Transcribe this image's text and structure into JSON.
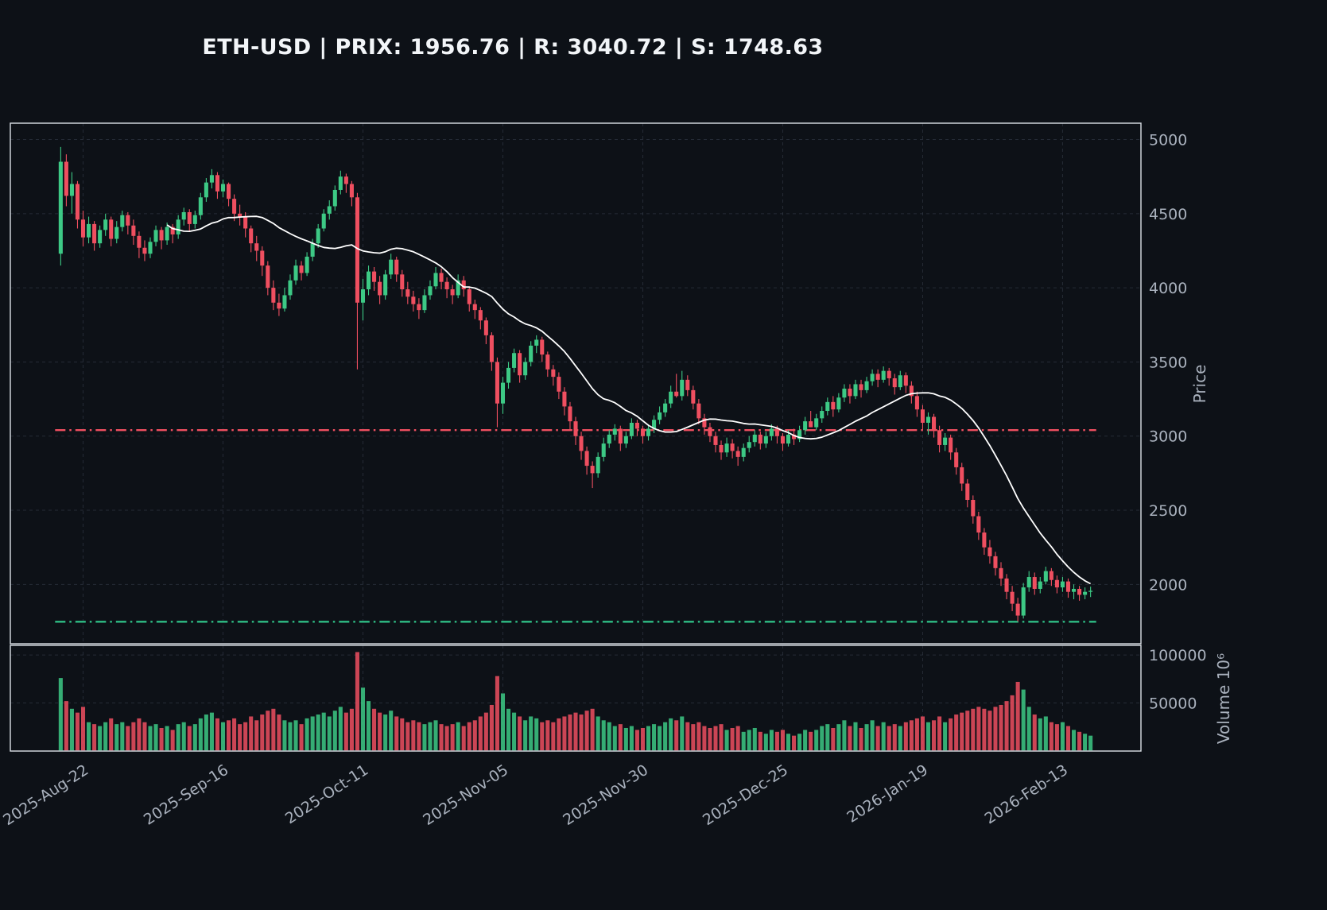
{
  "title": "ETH-USD | PRIX: 1956.76 | R: 3040.72 | S: 1748.63",
  "header": {
    "symbol": "ETH-USD",
    "price": 1956.76,
    "resistance": 3040.72,
    "support": 1748.63
  },
  "chart_data": {
    "type": "candlestick",
    "panels": [
      "price",
      "volume"
    ],
    "ohlcv_format": [
      "open",
      "high",
      "low",
      "close",
      "volume_x1e6"
    ],
    "ma": {
      "period": 20,
      "color": "#ffffff",
      "name": "moving-average"
    },
    "hlines": [
      {
        "name": "resistance-line",
        "value": 3040.72,
        "color": "#ef4f60",
        "style": "dashdot"
      },
      {
        "name": "support-line",
        "value": 1748.63,
        "color": "#2ebd85",
        "style": "dashdot"
      }
    ],
    "y_axis": {
      "label": "Price",
      "ticks": [
        2000,
        2500,
        3000,
        3500,
        4000,
        4500,
        5000
      ],
      "range": [
        1600,
        5110
      ]
    },
    "volume_axis": {
      "label": "Volume  10⁶",
      "ticks": [
        50000,
        100000
      ],
      "range": [
        0,
        110000
      ]
    },
    "x_ticks": [
      {
        "index": 4,
        "label": "2025-Aug-22"
      },
      {
        "index": 29,
        "label": "2025-Sep-16"
      },
      {
        "index": 54,
        "label": "2025-Oct-11"
      },
      {
        "index": 79,
        "label": "2025-Nov-05"
      },
      {
        "index": 104,
        "label": "2025-Nov-30"
      },
      {
        "index": 129,
        "label": "2025-Dec-25"
      },
      {
        "index": 154,
        "label": "2026-Jan-19"
      },
      {
        "index": 179,
        "label": "2026-Feb-13"
      }
    ],
    "colors": {
      "up": "#3dc985",
      "down": "#ef4f60",
      "ma": "#ffffff",
      "background": "#0d1117",
      "grid": "#3a4150",
      "axis_text": "#a9b1bd",
      "border": "#dde2e8",
      "title": "#f2f5f8"
    },
    "candles": [
      [
        4230,
        4950,
        4150,
        4850,
        76000
      ],
      [
        4850,
        4900,
        4550,
        4620,
        52000
      ],
      [
        4620,
        4780,
        4500,
        4700,
        44000
      ],
      [
        4700,
        4720,
        4400,
        4460,
        40000
      ],
      [
        4460,
        4520,
        4280,
        4340,
        46000
      ],
      [
        4340,
        4480,
        4300,
        4430,
        30000
      ],
      [
        4430,
        4450,
        4250,
        4300,
        28000
      ],
      [
        4300,
        4420,
        4270,
        4390,
        26000
      ],
      [
        4390,
        4500,
        4350,
        4460,
        30000
      ],
      [
        4460,
        4480,
        4280,
        4330,
        34000
      ],
      [
        4330,
        4450,
        4300,
        4410,
        28000
      ],
      [
        4410,
        4520,
        4380,
        4490,
        30000
      ],
      [
        4490,
        4510,
        4360,
        4420,
        26000
      ],
      [
        4420,
        4460,
        4290,
        4350,
        30000
      ],
      [
        4350,
        4380,
        4200,
        4270,
        34000
      ],
      [
        4270,
        4320,
        4180,
        4230,
        30000
      ],
      [
        4230,
        4340,
        4200,
        4310,
        26000
      ],
      [
        4310,
        4420,
        4280,
        4390,
        28000
      ],
      [
        4390,
        4410,
        4260,
        4320,
        24000
      ],
      [
        4320,
        4440,
        4290,
        4410,
        26000
      ],
      [
        4410,
        4430,
        4300,
        4360,
        22000
      ],
      [
        4360,
        4490,
        4330,
        4460,
        28000
      ],
      [
        4460,
        4540,
        4420,
        4510,
        30000
      ],
      [
        4510,
        4530,
        4380,
        4430,
        26000
      ],
      [
        4430,
        4520,
        4400,
        4490,
        28000
      ],
      [
        4490,
        4640,
        4460,
        4610,
        34000
      ],
      [
        4610,
        4740,
        4580,
        4710,
        38000
      ],
      [
        4710,
        4800,
        4670,
        4760,
        40000
      ],
      [
        4760,
        4780,
        4600,
        4650,
        34000
      ],
      [
        4650,
        4730,
        4610,
        4700,
        30000
      ],
      [
        4700,
        4710,
        4550,
        4600,
        32000
      ],
      [
        4600,
        4630,
        4450,
        4500,
        34000
      ],
      [
        4500,
        4560,
        4420,
        4480,
        28000
      ],
      [
        4480,
        4510,
        4340,
        4400,
        30000
      ],
      [
        4400,
        4420,
        4240,
        4300,
        36000
      ],
      [
        4300,
        4350,
        4180,
        4250,
        32000
      ],
      [
        4250,
        4280,
        4080,
        4150,
        38000
      ],
      [
        4150,
        4180,
        3950,
        4000,
        42000
      ],
      [
        4000,
        4050,
        3850,
        3900,
        44000
      ],
      [
        3900,
        3960,
        3810,
        3860,
        38000
      ],
      [
        3860,
        4000,
        3840,
        3950,
        32000
      ],
      [
        3950,
        4090,
        3920,
        4050,
        30000
      ],
      [
        4050,
        4190,
        4020,
        4150,
        32000
      ],
      [
        4150,
        4180,
        4050,
        4100,
        28000
      ],
      [
        4100,
        4240,
        4080,
        4210,
        34000
      ],
      [
        4210,
        4330,
        4180,
        4300,
        36000
      ],
      [
        4300,
        4430,
        4270,
        4400,
        38000
      ],
      [
        4400,
        4530,
        4380,
        4500,
        40000
      ],
      [
        4500,
        4590,
        4460,
        4550,
        36000
      ],
      [
        4550,
        4690,
        4520,
        4660,
        42000
      ],
      [
        4660,
        4790,
        4630,
        4750,
        46000
      ],
      [
        4750,
        4770,
        4640,
        4700,
        40000
      ],
      [
        4700,
        4720,
        4550,
        4610,
        44000
      ],
      [
        4610,
        4640,
        3450,
        3900,
        103000
      ],
      [
        3900,
        4060,
        3780,
        3990,
        66000
      ],
      [
        3990,
        4150,
        3950,
        4110,
        52000
      ],
      [
        4110,
        4140,
        3980,
        4040,
        44000
      ],
      [
        4040,
        4080,
        3890,
        3950,
        40000
      ],
      [
        3950,
        4120,
        3920,
        4090,
        38000
      ],
      [
        4090,
        4230,
        4060,
        4190,
        42000
      ],
      [
        4190,
        4210,
        4040,
        4090,
        36000
      ],
      [
        4090,
        4120,
        3940,
        3990,
        34000
      ],
      [
        3990,
        4040,
        3890,
        3940,
        30000
      ],
      [
        3940,
        3980,
        3840,
        3890,
        32000
      ],
      [
        3890,
        3930,
        3790,
        3850,
        30000
      ],
      [
        3850,
        3990,
        3830,
        3950,
        28000
      ],
      [
        3950,
        4050,
        3920,
        4010,
        30000
      ],
      [
        4010,
        4140,
        3990,
        4100,
        32000
      ],
      [
        4100,
        4130,
        3990,
        4040,
        28000
      ],
      [
        4040,
        4070,
        3930,
        3990,
        26000
      ],
      [
        3990,
        4020,
        3890,
        3950,
        28000
      ],
      [
        3950,
        4090,
        3930,
        4050,
        30000
      ],
      [
        4050,
        4080,
        3940,
        3990,
        26000
      ],
      [
        3990,
        4010,
        3840,
        3890,
        30000
      ],
      [
        3890,
        3920,
        3790,
        3850,
        32000
      ],
      [
        3850,
        3870,
        3720,
        3780,
        36000
      ],
      [
        3780,
        3800,
        3620,
        3680,
        40000
      ],
      [
        3680,
        3700,
        3440,
        3500,
        48000
      ],
      [
        3500,
        3530,
        3060,
        3220,
        78000
      ],
      [
        3220,
        3400,
        3150,
        3360,
        60000
      ],
      [
        3360,
        3500,
        3320,
        3460,
        44000
      ],
      [
        3460,
        3590,
        3430,
        3560,
        40000
      ],
      [
        3560,
        3580,
        3360,
        3410,
        36000
      ],
      [
        3410,
        3530,
        3380,
        3500,
        32000
      ],
      [
        3500,
        3640,
        3470,
        3610,
        36000
      ],
      [
        3610,
        3680,
        3560,
        3650,
        34000
      ],
      [
        3650,
        3670,
        3500,
        3550,
        30000
      ],
      [
        3550,
        3570,
        3400,
        3450,
        32000
      ],
      [
        3450,
        3480,
        3340,
        3400,
        30000
      ],
      [
        3400,
        3430,
        3250,
        3300,
        34000
      ],
      [
        3300,
        3330,
        3140,
        3200,
        36000
      ],
      [
        3200,
        3230,
        3040,
        3100,
        38000
      ],
      [
        3100,
        3130,
        2940,
        3000,
        40000
      ],
      [
        3000,
        3030,
        2840,
        2900,
        38000
      ],
      [
        2900,
        2930,
        2740,
        2800,
        42000
      ],
      [
        2800,
        2830,
        2650,
        2750,
        44000
      ],
      [
        2750,
        2890,
        2720,
        2860,
        36000
      ],
      [
        2860,
        2990,
        2830,
        2950,
        32000
      ],
      [
        2950,
        3040,
        2920,
        3010,
        30000
      ],
      [
        3010,
        3080,
        2970,
        3050,
        26000
      ],
      [
        3050,
        3070,
        2900,
        2950,
        28000
      ],
      [
        2950,
        3030,
        2920,
        3000,
        24000
      ],
      [
        3000,
        3120,
        2980,
        3090,
        26000
      ],
      [
        3090,
        3110,
        3000,
        3050,
        22000
      ],
      [
        3050,
        3070,
        2950,
        3000,
        24000
      ],
      [
        3000,
        3080,
        2970,
        3050,
        26000
      ],
      [
        3050,
        3140,
        3020,
        3110,
        28000
      ],
      [
        3110,
        3200,
        3080,
        3160,
        26000
      ],
      [
        3160,
        3250,
        3130,
        3220,
        30000
      ],
      [
        3220,
        3340,
        3190,
        3300,
        34000
      ],
      [
        3300,
        3420,
        3260,
        3270,
        32000
      ],
      [
        3270,
        3440,
        3240,
        3380,
        36000
      ],
      [
        3380,
        3410,
        3270,
        3310,
        30000
      ],
      [
        3310,
        3340,
        3180,
        3220,
        28000
      ],
      [
        3220,
        3250,
        3080,
        3120,
        30000
      ],
      [
        3120,
        3150,
        3010,
        3060,
        26000
      ],
      [
        3060,
        3090,
        2960,
        3000,
        24000
      ],
      [
        3000,
        3030,
        2890,
        2940,
        26000
      ],
      [
        2940,
        2970,
        2840,
        2890,
        28000
      ],
      [
        2890,
        2990,
        2860,
        2950,
        22000
      ],
      [
        2950,
        2980,
        2850,
        2900,
        24000
      ],
      [
        2900,
        2930,
        2800,
        2860,
        26000
      ],
      [
        2860,
        2950,
        2830,
        2920,
        20000
      ],
      [
        2920,
        3000,
        2890,
        2960,
        22000
      ],
      [
        2960,
        3040,
        2930,
        3010,
        24000
      ],
      [
        3010,
        3030,
        2910,
        2950,
        20000
      ],
      [
        2950,
        3030,
        2920,
        3000,
        18000
      ],
      [
        3000,
        3080,
        2970,
        3050,
        22000
      ],
      [
        3050,
        3070,
        2950,
        3000,
        20000
      ],
      [
        3000,
        3020,
        2900,
        2950,
        22000
      ],
      [
        2950,
        3040,
        2930,
        3010,
        18000
      ],
      [
        3010,
        3050,
        2940,
        2980,
        16000
      ],
      [
        2980,
        3070,
        2960,
        3040,
        18000
      ],
      [
        3040,
        3130,
        3010,
        3100,
        22000
      ],
      [
        3100,
        3170,
        3060,
        3060,
        20000
      ],
      [
        3060,
        3150,
        3040,
        3120,
        22000
      ],
      [
        3120,
        3200,
        3090,
        3170,
        26000
      ],
      [
        3170,
        3260,
        3140,
        3230,
        28000
      ],
      [
        3230,
        3270,
        3130,
        3180,
        24000
      ],
      [
        3180,
        3290,
        3160,
        3260,
        28000
      ],
      [
        3260,
        3350,
        3230,
        3320,
        32000
      ],
      [
        3320,
        3350,
        3220,
        3270,
        26000
      ],
      [
        3270,
        3380,
        3250,
        3350,
        30000
      ],
      [
        3350,
        3380,
        3260,
        3310,
        24000
      ],
      [
        3310,
        3400,
        3290,
        3370,
        28000
      ],
      [
        3370,
        3450,
        3340,
        3420,
        32000
      ],
      [
        3420,
        3450,
        3330,
        3380,
        26000
      ],
      [
        3380,
        3470,
        3360,
        3440,
        30000
      ],
      [
        3440,
        3460,
        3340,
        3390,
        26000
      ],
      [
        3390,
        3420,
        3280,
        3330,
        28000
      ],
      [
        3330,
        3440,
        3310,
        3410,
        26000
      ],
      [
        3410,
        3430,
        3290,
        3340,
        30000
      ],
      [
        3340,
        3370,
        3220,
        3270,
        32000
      ],
      [
        3270,
        3300,
        3130,
        3180,
        34000
      ],
      [
        3180,
        3210,
        3040,
        3090,
        36000
      ],
      [
        3090,
        3160,
        3010,
        3130,
        30000
      ],
      [
        3130,
        3150,
        2990,
        3040,
        32000
      ],
      [
        3040,
        3070,
        2890,
        2940,
        36000
      ],
      [
        2940,
        3020,
        2900,
        2990,
        30000
      ],
      [
        2990,
        3010,
        2840,
        2890,
        34000
      ],
      [
        2890,
        2920,
        2740,
        2790,
        38000
      ],
      [
        2790,
        2820,
        2630,
        2680,
        40000
      ],
      [
        2680,
        2710,
        2520,
        2570,
        42000
      ],
      [
        2570,
        2600,
        2410,
        2460,
        44000
      ],
      [
        2460,
        2490,
        2300,
        2350,
        46000
      ],
      [
        2350,
        2380,
        2200,
        2250,
        44000
      ],
      [
        2250,
        2300,
        2140,
        2190,
        42000
      ],
      [
        2190,
        2220,
        2060,
        2110,
        46000
      ],
      [
        2110,
        2150,
        1990,
        2040,
        48000
      ],
      [
        2040,
        2070,
        1900,
        1950,
        52000
      ],
      [
        1950,
        1990,
        1820,
        1870,
        58000
      ],
      [
        1870,
        1910,
        1750,
        1790,
        72000
      ],
      [
        1790,
        2010,
        1770,
        1980,
        64000
      ],
      [
        1980,
        2090,
        1950,
        2050,
        46000
      ],
      [
        2050,
        2080,
        1930,
        1970,
        38000
      ],
      [
        1970,
        2050,
        1940,
        2020,
        34000
      ],
      [
        2020,
        2120,
        2000,
        2090,
        36000
      ],
      [
        2090,
        2110,
        1990,
        2030,
        30000
      ],
      [
        2030,
        2060,
        1940,
        1980,
        28000
      ],
      [
        1980,
        2050,
        1950,
        2020,
        30000
      ],
      [
        2020,
        2040,
        1910,
        1950,
        26000
      ],
      [
        1950,
        2000,
        1900,
        1970,
        22000
      ],
      [
        1970,
        1990,
        1890,
        1930,
        20000
      ],
      [
        1930,
        1980,
        1900,
        1950,
        18000
      ],
      [
        1950,
        1985,
        1915,
        1957,
        16000
      ]
    ]
  }
}
